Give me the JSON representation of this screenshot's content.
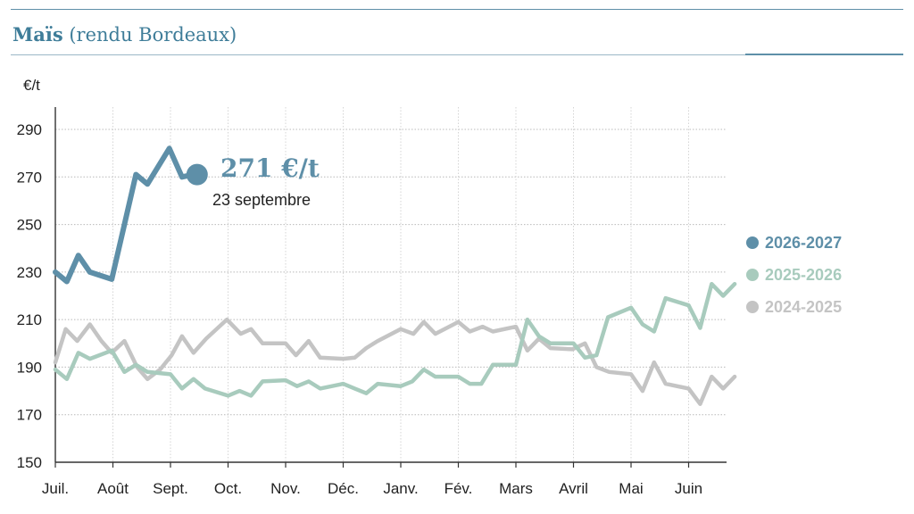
{
  "title": {
    "main": "Maïs",
    "sub": "(rendu Bordeaux)"
  },
  "callout": {
    "value": "271 €/t",
    "date": "23 septembre"
  },
  "legend": [
    {
      "label": "2026-2027",
      "color": "#5e8fa8"
    },
    {
      "label": "2025-2026",
      "color": "#a8cbbd"
    },
    {
      "label": "2024-2025",
      "color": "#c4c4c4"
    }
  ],
  "chart_data": {
    "type": "line",
    "ylabel": "€/t",
    "ylim": [
      150,
      290
    ],
    "yticks": [
      150,
      170,
      190,
      210,
      230,
      250,
      270,
      290
    ],
    "xlim": [
      0,
      12
    ],
    "x_ticks": [
      {
        "label": "Juil.",
        "x": 0
      },
      {
        "label": "Août",
        "x": 1
      },
      {
        "label": "Sept.",
        "x": 2
      },
      {
        "label": "Oct.",
        "x": 3
      },
      {
        "label": "Nov.",
        "x": 4
      },
      {
        "label": "Déc.",
        "x": 5
      },
      {
        "label": "Janv.",
        "x": 6
      },
      {
        "label": "Fév.",
        "x": 7
      },
      {
        "label": "Mars",
        "x": 8
      },
      {
        "label": "Avril",
        "x": 9
      },
      {
        "label": "Mai",
        "x": 10
      },
      {
        "label": "Juin",
        "x": 11
      }
    ],
    "grid": true,
    "legend_position": "right",
    "series": [
      {
        "name": "2024-2025",
        "color": "#c4c4c4",
        "points": [
          [
            0,
            192
          ],
          [
            0.18,
            206
          ],
          [
            0.38,
            201
          ],
          [
            0.6,
            208
          ],
          [
            0.8,
            201
          ],
          [
            0.98,
            196
          ],
          [
            1.2,
            201
          ],
          [
            1.42,
            190
          ],
          [
            1.6,
            185
          ],
          [
            1.82,
            189
          ],
          [
            2.02,
            195
          ],
          [
            2.2,
            203
          ],
          [
            2.4,
            196
          ],
          [
            2.62,
            202
          ],
          [
            2.98,
            210
          ],
          [
            3.22,
            204
          ],
          [
            3.4,
            206
          ],
          [
            3.6,
            200
          ],
          [
            4.0,
            200
          ],
          [
            4.18,
            195
          ],
          [
            4.4,
            201
          ],
          [
            4.6,
            194
          ],
          [
            5.0,
            193.5
          ],
          [
            5.2,
            194
          ],
          [
            5.4,
            198
          ],
          [
            5.6,
            201
          ],
          [
            6.0,
            206
          ],
          [
            6.22,
            204
          ],
          [
            6.4,
            209
          ],
          [
            6.6,
            204
          ],
          [
            7.0,
            209
          ],
          [
            7.2,
            205
          ],
          [
            7.42,
            207
          ],
          [
            7.6,
            205
          ],
          [
            8.0,
            207
          ],
          [
            8.2,
            197
          ],
          [
            8.4,
            202
          ],
          [
            8.6,
            198
          ],
          [
            8.98,
            197.5
          ],
          [
            9.2,
            200
          ],
          [
            9.4,
            190
          ],
          [
            9.62,
            188
          ],
          [
            10.0,
            187
          ],
          [
            10.2,
            180
          ],
          [
            10.4,
            192
          ],
          [
            10.6,
            183
          ],
          [
            11.0,
            181
          ],
          [
            11.2,
            174.5
          ],
          [
            11.4,
            186
          ],
          [
            11.6,
            181
          ],
          [
            11.8,
            186
          ]
        ]
      },
      {
        "name": "2025-2026",
        "color": "#a8cbbd",
        "points": [
          [
            0,
            189
          ],
          [
            0.2,
            185
          ],
          [
            0.4,
            196
          ],
          [
            0.6,
            193.5
          ],
          [
            0.98,
            197
          ],
          [
            1.2,
            188
          ],
          [
            1.4,
            191
          ],
          [
            1.6,
            188
          ],
          [
            2.0,
            187
          ],
          [
            2.2,
            181
          ],
          [
            2.4,
            185
          ],
          [
            2.6,
            181
          ],
          [
            3.0,
            178
          ],
          [
            3.2,
            180
          ],
          [
            3.4,
            178
          ],
          [
            3.6,
            184
          ],
          [
            4.0,
            184.5
          ],
          [
            4.2,
            182
          ],
          [
            4.4,
            184
          ],
          [
            4.6,
            181
          ],
          [
            5.0,
            183
          ],
          [
            5.2,
            181
          ],
          [
            5.4,
            179
          ],
          [
            5.6,
            183
          ],
          [
            6.0,
            182
          ],
          [
            6.2,
            184
          ],
          [
            6.4,
            189
          ],
          [
            6.6,
            186
          ],
          [
            7.0,
            186
          ],
          [
            7.2,
            183
          ],
          [
            7.4,
            183
          ],
          [
            7.6,
            191
          ],
          [
            8.0,
            191
          ],
          [
            8.2,
            210
          ],
          [
            8.4,
            203
          ],
          [
            8.6,
            200
          ],
          [
            9.0,
            200
          ],
          [
            9.2,
            194
          ],
          [
            9.4,
            195
          ],
          [
            9.6,
            211
          ],
          [
            10.0,
            215
          ],
          [
            10.2,
            208
          ],
          [
            10.4,
            205
          ],
          [
            10.6,
            219
          ],
          [
            11.0,
            216
          ],
          [
            11.2,
            206.5
          ],
          [
            11.4,
            225
          ],
          [
            11.6,
            220
          ],
          [
            11.8,
            225
          ]
        ]
      },
      {
        "name": "2026-2027",
        "color": "#5e8fa8",
        "points": [
          [
            0,
            230
          ],
          [
            0.2,
            226
          ],
          [
            0.4,
            237
          ],
          [
            0.6,
            230
          ],
          [
            0.98,
            227
          ],
          [
            1.2,
            250
          ],
          [
            1.4,
            271
          ],
          [
            1.6,
            267
          ],
          [
            1.98,
            282
          ],
          [
            2.2,
            270
          ],
          [
            2.4,
            271
          ]
        ]
      }
    ]
  }
}
